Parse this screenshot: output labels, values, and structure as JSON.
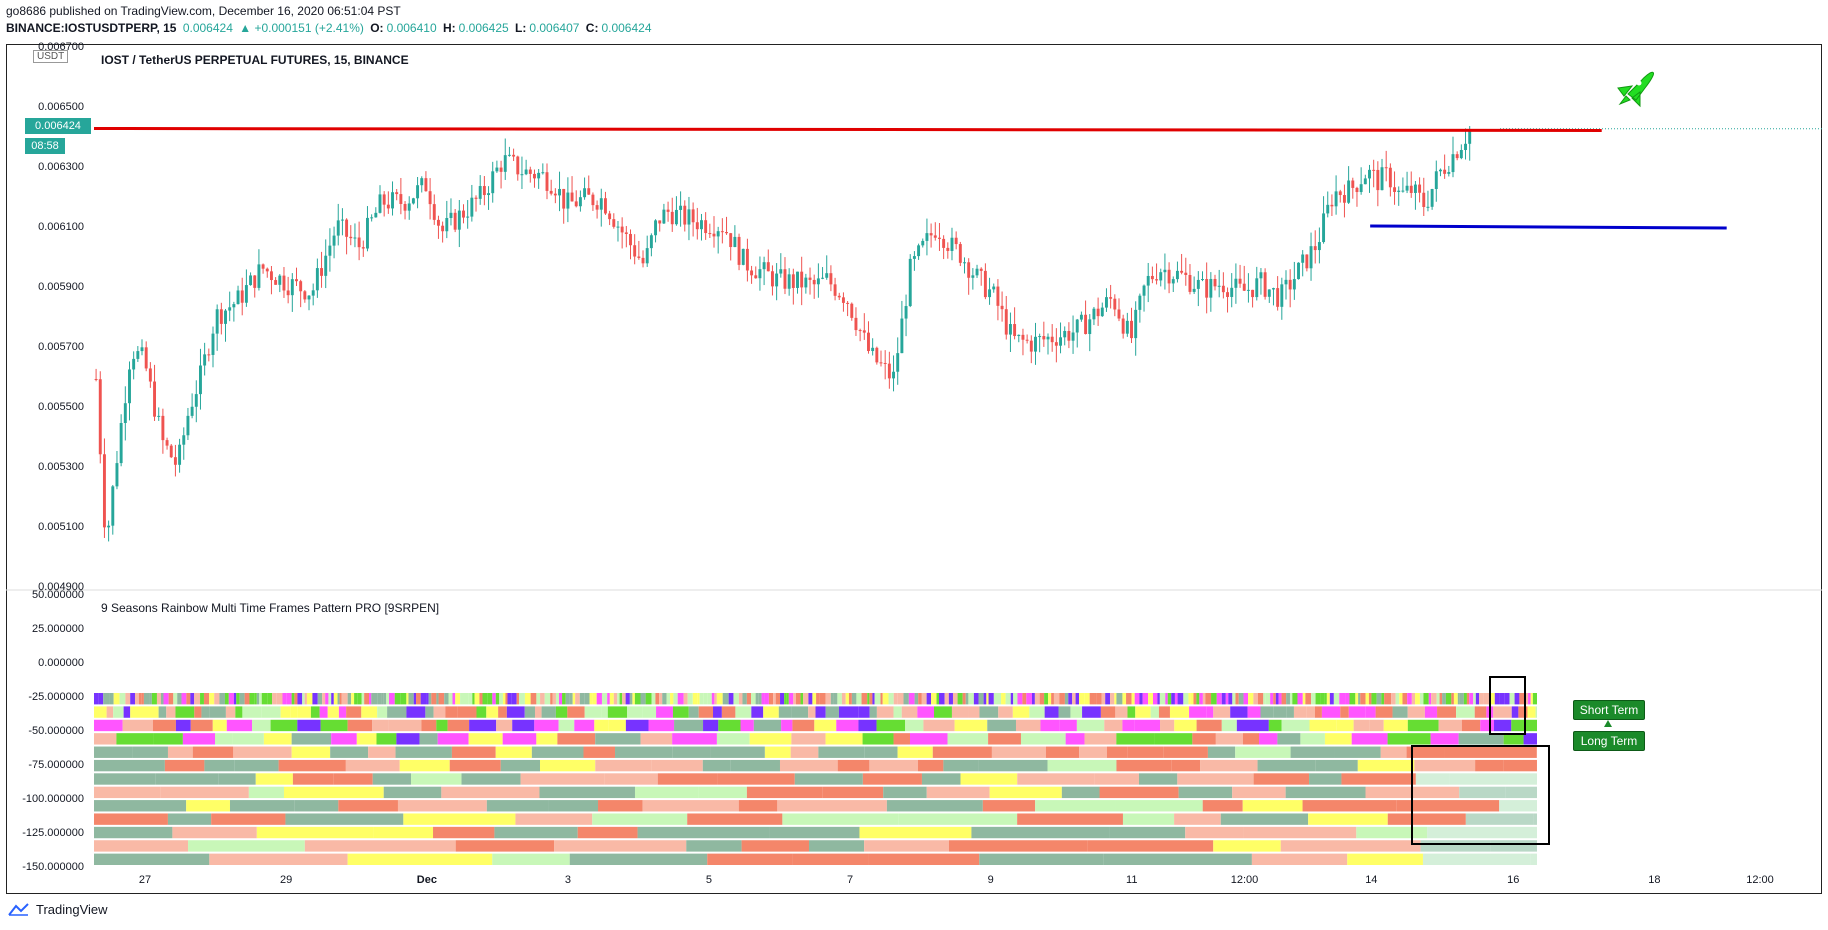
{
  "header": {
    "publisher_line": "go8686 published on TradingView.com, December 16, 2020 06:51:04 PST",
    "symbol": "BINANCE:IOSTUSDTPERP, 15",
    "last": "0.006424",
    "change": "▲ +0.000151 (+2.41%)",
    "o_label": "O:",
    "o_value": "0.006410",
    "h_label": "H:",
    "h_value": "0.006425",
    "l_label": "L:",
    "l_value": "0.006407",
    "c_label": "C:",
    "c_value": "0.006424"
  },
  "main_chart": {
    "title": "IOST / TetherUS PERPETUAL FUTURES, 15, BINANCE",
    "currency": "USDT",
    "price_tag": "0.006424",
    "countdown": "08:58"
  },
  "indicator": {
    "title": "9 Seasons Rainbow Multi Time Frames Pattern PRO [9SRPEN]",
    "short_term_label": "Short Term",
    "long_term_label": "Long Term"
  },
  "footer": {
    "brand": "TradingView"
  },
  "colors": {
    "up": "#26a69a",
    "down": "#ef5350",
    "resistance": "#e00000",
    "support": "#0000cc",
    "label_bg": "#1b8a2a",
    "rocket": "#22dd22"
  },
  "chart_data": [
    {
      "type": "line",
      "series_kind": "candlestick",
      "ylim": [
        0.0049,
        0.0067
      ],
      "y_ticks": [
        "0.006700",
        "0.006500",
        "0.006300",
        "0.006100",
        "0.005900",
        "0.005700",
        "0.005500",
        "0.005300",
        "0.005100",
        "0.004900"
      ],
      "x_ticks": [
        "27",
        "29",
        "Dec",
        "3",
        "5",
        "7",
        "9",
        "11",
        "12:00",
        "14",
        "16",
        "18",
        "12:00"
      ],
      "x_tick_frac": [
        0.0306,
        0.1153,
        0.1998,
        0.2845,
        0.3691,
        0.4538,
        0.5382,
        0.6229,
        0.6906,
        0.7667,
        0.8519,
        0.9366,
        1.0
      ],
      "series": [
        {
          "name": "",
          "x_frac": [
            0.0,
            0.006,
            0.013,
            0.021,
            0.029,
            0.04,
            0.049,
            0.056,
            0.063,
            0.072,
            0.085,
            0.1,
            0.115,
            0.13,
            0.145,
            0.158,
            0.172,
            0.185,
            0.199,
            0.208,
            0.218,
            0.232,
            0.245,
            0.258,
            0.268,
            0.276,
            0.283,
            0.294,
            0.305,
            0.318,
            0.33,
            0.338,
            0.345,
            0.352,
            0.366,
            0.378,
            0.39,
            0.4,
            0.41,
            0.425,
            0.433,
            0.44,
            0.452,
            0.466,
            0.48,
            0.49,
            0.497,
            0.506,
            0.515,
            0.52,
            0.53,
            0.54,
            0.552,
            0.563,
            0.576,
            0.59,
            0.6,
            0.612,
            0.623,
            0.632,
            0.64,
            0.655,
            0.667,
            0.678,
            0.69,
            0.701,
            0.713,
            0.724,
            0.735,
            0.745,
            0.755,
            0.765,
            0.772,
            0.778,
            0.785,
            0.792,
            0.8,
            0.808,
            0.816,
            0.821,
            0.827
          ],
          "values": [
            0.00559,
            0.00504,
            0.00535,
            0.00569,
            0.00565,
            0.00538,
            0.0053,
            0.00549,
            0.0056,
            0.0058,
            0.00585,
            0.00596,
            0.00591,
            0.00588,
            0.0061,
            0.00603,
            0.00618,
            0.00618,
            0.00624,
            0.00608,
            0.00613,
            0.0062,
            0.00632,
            0.00628,
            0.00627,
            0.00624,
            0.00617,
            0.00619,
            0.00619,
            0.00607,
            0.00597,
            0.00612,
            0.00615,
            0.00613,
            0.00611,
            0.0061,
            0.00598,
            0.00595,
            0.00592,
            0.00591,
            0.0059,
            0.00592,
            0.00586,
            0.00567,
            0.00559,
            0.00595,
            0.00602,
            0.0061,
            0.00603,
            0.00601,
            0.00593,
            0.00587,
            0.00572,
            0.00571,
            0.00573,
            0.00575,
            0.0058,
            0.00586,
            0.00572,
            0.00591,
            0.00596,
            0.00593,
            0.00589,
            0.00591,
            0.00588,
            0.00591,
            0.00586,
            0.00595,
            0.00604,
            0.00621,
            0.00622,
            0.00628,
            0.00625,
            0.00627,
            0.0062,
            0.00622,
            0.00617,
            0.00627,
            0.00633,
            0.00637,
            0.00642
          ]
        }
      ],
      "annotations": [
        {
          "label": "resistance",
          "y": 0.006425,
          "x_from_frac": 0.0,
          "x_to_frac": 0.905
        },
        {
          "label": "support",
          "y": 0.0061,
          "x_from_frac": 0.766,
          "x_to_frac": 0.98
        }
      ]
    },
    {
      "type": "heatmap",
      "ylim": [
        -150,
        50
      ],
      "y_ticks": [
        "50.000000",
        "25.000000",
        "0.000000",
        "-25.000000",
        "-50.000000",
        "-75.000000",
        "-100.000000",
        "-125.000000",
        "-150.000000"
      ],
      "rows": 13
    }
  ]
}
